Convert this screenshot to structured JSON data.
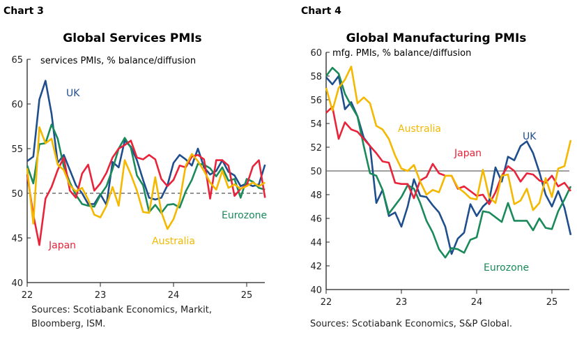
{
  "chart_data": [
    {
      "type": "line",
      "panel_label": "Chart 3",
      "title": "Global Services PMIs",
      "subtitle": "services PMIs, % balance/diffusion",
      "source": [
        "Sources: Scotiabank Economics, Markit,",
        "Bloomberg, ISM."
      ],
      "x_ticks": [
        "22",
        "23",
        "24",
        "25"
      ],
      "frequency": "monthly",
      "ylim": [
        40,
        65
      ],
      "y_ticks": [
        40,
        45,
        50,
        55,
        60,
        65
      ],
      "reference_line": {
        "y": 50,
        "style": "dashed"
      },
      "grid": false,
      "series": [
        {
          "name": "UK",
          "color": "#1f4e8c",
          "values": [
            53.6,
            54.1,
            60.5,
            62.6,
            58.9,
            53.4,
            54.3,
            52.6,
            50.9,
            50.0,
            48.8,
            48.8,
            49.9,
            48.7,
            53.5,
            52.9,
            55.9,
            55.2,
            53.7,
            51.5,
            49.5,
            49.3,
            49.5,
            50.9,
            53.4,
            54.3,
            53.8,
            53.1,
            55.0,
            52.9,
            52.1,
            52.5,
            53.7,
            52.4,
            52.0,
            50.8,
            51.1,
            50.8,
            51.0,
            53.2
          ]
        },
        {
          "name": "Eurozone",
          "color": "#1a8a5a",
          "values": [
            53.1,
            51.1,
            55.5,
            55.6,
            57.7,
            56.1,
            53.0,
            51.2,
            49.8,
            48.8,
            48.6,
            48.5,
            49.8,
            50.8,
            52.7,
            55.0,
            56.2,
            55.1,
            52.0,
            50.9,
            47.9,
            48.7,
            47.8,
            48.7,
            48.8,
            48.4,
            50.2,
            51.5,
            53.3,
            53.2,
            52.8,
            51.9,
            52.9,
            51.4,
            51.6,
            49.5,
            51.6,
            51.3,
            50.6,
            50.4
          ]
        },
        {
          "name": "Japan",
          "color": "#e8233a",
          "values": [
            52.1,
            47.6,
            44.2,
            49.4,
            50.7,
            52.6,
            54.0,
            50.3,
            49.5,
            52.2,
            53.2,
            50.3,
            51.1,
            52.3,
            54.0,
            55.0,
            55.4,
            55.9,
            54.0,
            53.8,
            54.3,
            53.8,
            51.6,
            50.8,
            51.5,
            53.1,
            52.9,
            54.1,
            54.3,
            53.8,
            49.4,
            53.7,
            53.7,
            53.1,
            49.7,
            50.5,
            50.9,
            53.0,
            53.7,
            49.5
          ]
        },
        {
          "name": "Australia",
          "color": "#f5b800",
          "values": [
            52.8,
            46.6,
            57.4,
            55.6,
            56.1,
            53.2,
            52.6,
            50.9,
            50.2,
            50.6,
            49.3,
            47.6,
            47.3,
            48.6,
            50.7,
            48.6,
            53.7,
            52.1,
            50.3,
            47.9,
            47.8,
            51.8,
            47.9,
            46.0,
            47.1,
            49.1,
            53.1,
            54.4,
            53.6,
            52.5,
            51.2,
            50.4,
            52.5,
            50.6,
            51.0,
            50.5,
            50.8,
            51.2,
            50.8,
            51.2
          ]
        }
      ]
    },
    {
      "type": "line",
      "panel_label": "Chart 4",
      "title": "Global Manufacturing PMIs",
      "subtitle": "mfg. PMIs, % balance/diffusion",
      "source": [
        "Sources: Scotiabank Economics, S&P Global."
      ],
      "x_ticks": [
        "22",
        "23",
        "24",
        "25"
      ],
      "frequency": "monthly",
      "ylim": [
        40,
        60
      ],
      "y_ticks": [
        40,
        42,
        44,
        46,
        48,
        50,
        52,
        54,
        56,
        58,
        60
      ],
      "reference_line": {
        "y": 50,
        "style": "solid"
      },
      "grid": false,
      "series": [
        {
          "name": "UK",
          "color": "#1f4e8c",
          "values": [
            57.9,
            57.3,
            58.0,
            55.2,
            55.8,
            54.6,
            52.8,
            52.1,
            47.3,
            48.4,
            46.2,
            46.5,
            45.3,
            47.0,
            49.3,
            47.9,
            47.8,
            47.1,
            46.5,
            45.3,
            43.0,
            44.3,
            44.8,
            47.2,
            46.2,
            47.0,
            47.5,
            50.3,
            49.1,
            51.2,
            50.9,
            52.1,
            52.5,
            51.5,
            49.9,
            48.0,
            47.0,
            48.3,
            46.9,
            44.6
          ]
        },
        {
          "name": "Eurozone",
          "color": "#1a8a5a",
          "values": [
            58.0,
            58.7,
            58.2,
            56.5,
            55.5,
            54.6,
            52.1,
            49.8,
            49.6,
            48.4,
            46.4,
            47.1,
            47.8,
            48.8,
            48.5,
            47.3,
            45.8,
            44.8,
            43.4,
            42.7,
            43.5,
            43.4,
            43.1,
            44.2,
            44.4,
            46.6,
            46.5,
            46.1,
            45.7,
            47.3,
            45.8,
            45.8,
            45.8,
            45.0,
            46.0,
            45.2,
            45.1,
            46.6,
            47.6,
            48.7
          ]
        },
        {
          "name": "Japan",
          "color": "#e8233a",
          "values": [
            54.9,
            55.4,
            52.7,
            54.1,
            53.5,
            53.3,
            52.7,
            52.1,
            51.5,
            50.8,
            50.7,
            49.0,
            48.9,
            48.9,
            47.7,
            49.2,
            49.5,
            50.6,
            49.8,
            49.6,
            49.6,
            48.5,
            48.7,
            48.3,
            47.9,
            48.0,
            47.2,
            48.2,
            49.6,
            50.4,
            50.0,
            49.1,
            49.8,
            49.7,
            49.2,
            49.0,
            49.6,
            48.7,
            49.0,
            48.3
          ]
        },
        {
          "name": "Australia",
          "color": "#f5b800",
          "values": [
            57.0,
            55.1,
            57.0,
            57.7,
            58.8,
            55.7,
            56.2,
            55.7,
            53.8,
            53.5,
            52.7,
            51.3,
            50.2,
            50.0,
            50.5,
            49.1,
            48.0,
            48.4,
            48.2,
            49.6,
            49.6,
            48.6,
            48.2,
            47.7,
            47.6,
            50.1,
            47.8,
            47.3,
            49.6,
            49.7,
            47.2,
            47.5,
            48.5,
            46.7,
            47.3,
            49.4,
            47.8,
            50.2,
            50.4,
            52.6
          ]
        }
      ]
    }
  ]
}
